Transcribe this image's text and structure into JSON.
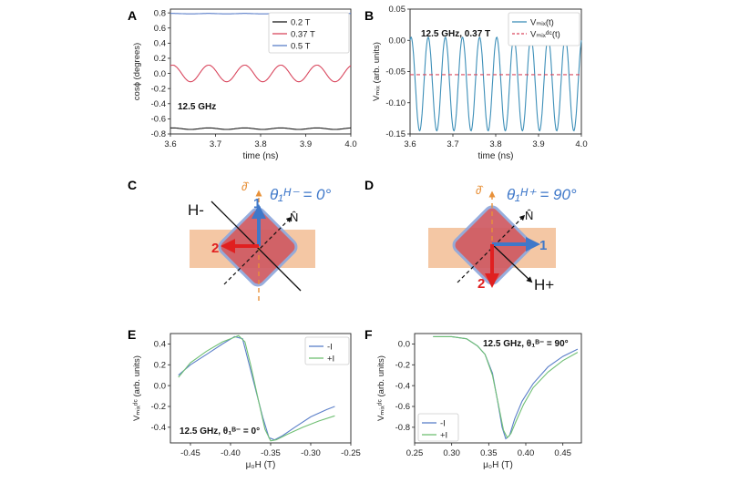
{
  "panels": {
    "A": "A",
    "B": "B",
    "C": "C",
    "D": "D",
    "E": "E",
    "F": "F"
  },
  "diagrams": {
    "C": {
      "theta_label": "θ₁ᴴ⁻ = 0°",
      "field_label": "H-",
      "axis1": "1",
      "axis2": "2",
      "d_label": "∂̂",
      "n_label": "N̂"
    },
    "D": {
      "theta_label": "θ₁ᴴ⁺ = 90°",
      "field_label": "H+",
      "axis1": "1",
      "axis2": "2",
      "d_label": "∂̂",
      "n_label": "N̂"
    }
  },
  "chart_data": [
    {
      "id": "A",
      "type": "line",
      "xlabel": "time (ns)",
      "ylabel": "cosϕ (degrees)",
      "xlim": [
        3.6,
        4.0
      ],
      "ylim": [
        -0.8,
        0.85
      ],
      "xticks": [
        "3.6",
        "3.7",
        "3.8",
        "3.9",
        "4.0"
      ],
      "yticks": [
        "-0.8",
        "-0.6",
        "-0.4",
        "-0.2",
        "0.0",
        "0.2",
        "0.4",
        "0.6",
        "0.8"
      ],
      "annotation": "12.5 GHz",
      "legend_position": "top-right",
      "series": [
        {
          "name": "0.2 T",
          "color": "#1a1a1a",
          "offset": -0.73,
          "amplitude": 0.01,
          "cycles": 5
        },
        {
          "name": "0.37 T",
          "color": "#d9475e",
          "offset": 0.0,
          "amplitude": 0.11,
          "cycles": 5
        },
        {
          "name": "0.5 T",
          "color": "#5b7fc9",
          "offset": 0.79,
          "amplitude": 0.003,
          "cycles": 5
        }
      ]
    },
    {
      "id": "B",
      "type": "line",
      "xlabel": "time (ns)",
      "ylabel": "Vₘᵢₓ (arb. units)",
      "xlim": [
        3.6,
        4.0
      ],
      "ylim": [
        -0.15,
        0.05
      ],
      "xticks": [
        "3.6",
        "3.7",
        "3.8",
        "3.9",
        "4.0"
      ],
      "yticks": [
        "-0.15",
        "-0.10",
        "-0.05",
        "0.00",
        "0.05"
      ],
      "annotation": "12.5 GHz, 0.37 T",
      "legend_position": "top-right",
      "series": [
        {
          "name": "Vₘᵢₓ(t)",
          "color": "#3d8fb8",
          "offset": -0.07,
          "amplitude": 0.075,
          "cycles": 10
        },
        {
          "name": "Vₘᵢₓᵈᶜ(t)",
          "color": "#d9475e",
          "constant": -0.055,
          "dashed": true
        }
      ]
    },
    {
      "id": "E",
      "type": "line",
      "xlabel": "μ₀H (T)",
      "ylabel": "Vₘᵢₓᵈᶜ (arb. units)",
      "xlim": [
        -0.475,
        -0.25
      ],
      "ylim": [
        -0.55,
        0.5
      ],
      "xticks": [
        "-0.45",
        "-0.40",
        "-0.35",
        "-0.30",
        "-0.25"
      ],
      "yticks": [
        "-0.4",
        "-0.2",
        "0.0",
        "0.2",
        "0.4"
      ],
      "annotation": "12.5 GHz, θ₁ᴮ⁻ = 0°",
      "legend_position": "top-right",
      "series": [
        {
          "name": "-I",
          "color": "#5b7fc9",
          "x": [
            -0.465,
            -0.45,
            -0.43,
            -0.41,
            -0.395,
            -0.385,
            -0.38,
            -0.37,
            -0.36,
            -0.352,
            -0.345,
            -0.335,
            -0.32,
            -0.3,
            -0.28,
            -0.27
          ],
          "y": [
            0.1,
            0.2,
            0.3,
            0.4,
            0.47,
            0.45,
            0.3,
            0.0,
            -0.3,
            -0.5,
            -0.52,
            -0.48,
            -0.4,
            -0.3,
            -0.23,
            -0.2
          ]
        },
        {
          "name": "+I",
          "color": "#6fbf73",
          "x": [
            -0.465,
            -0.45,
            -0.43,
            -0.41,
            -0.39,
            -0.382,
            -0.375,
            -0.365,
            -0.357,
            -0.35,
            -0.343,
            -0.33,
            -0.31,
            -0.29,
            -0.27
          ],
          "y": [
            0.08,
            0.22,
            0.33,
            0.42,
            0.48,
            0.42,
            0.2,
            -0.15,
            -0.42,
            -0.53,
            -0.52,
            -0.47,
            -0.4,
            -0.34,
            -0.29
          ]
        }
      ]
    },
    {
      "id": "F",
      "type": "line",
      "xlabel": "μ₀H (T)",
      "ylabel": "Vₘᵢₓᵈᶜ (arb. units)",
      "xlim": [
        0.25,
        0.475
      ],
      "ylim": [
        -0.95,
        0.1
      ],
      "xticks": [
        "0.25",
        "0.30",
        "0.35",
        "0.40",
        "0.45"
      ],
      "yticks": [
        "-0.8",
        "-0.6",
        "-0.4",
        "-0.2",
        "0.0"
      ],
      "annotation": "12.5 GHz, θ₁ᴮ⁻ = 90°",
      "legend_position": "bottom-left",
      "series": [
        {
          "name": "-I",
          "color": "#5b7fc9",
          "x": [
            0.275,
            0.3,
            0.32,
            0.335,
            0.345,
            0.355,
            0.362,
            0.368,
            0.373,
            0.378,
            0.385,
            0.395,
            0.41,
            0.43,
            0.45,
            0.47
          ],
          "y": [
            0.07,
            0.07,
            0.05,
            -0.02,
            -0.1,
            -0.28,
            -0.55,
            -0.8,
            -0.91,
            -0.88,
            -0.72,
            -0.55,
            -0.38,
            -0.22,
            -0.12,
            -0.05
          ]
        },
        {
          "name": "+I",
          "color": "#6fbf73",
          "x": [
            0.275,
            0.3,
            0.32,
            0.335,
            0.345,
            0.355,
            0.363,
            0.37,
            0.375,
            0.38,
            0.387,
            0.397,
            0.41,
            0.43,
            0.45,
            0.47
          ],
          "y": [
            0.07,
            0.07,
            0.05,
            -0.02,
            -0.1,
            -0.3,
            -0.58,
            -0.83,
            -0.9,
            -0.86,
            -0.74,
            -0.58,
            -0.42,
            -0.27,
            -0.16,
            -0.08
          ]
        }
      ]
    }
  ]
}
